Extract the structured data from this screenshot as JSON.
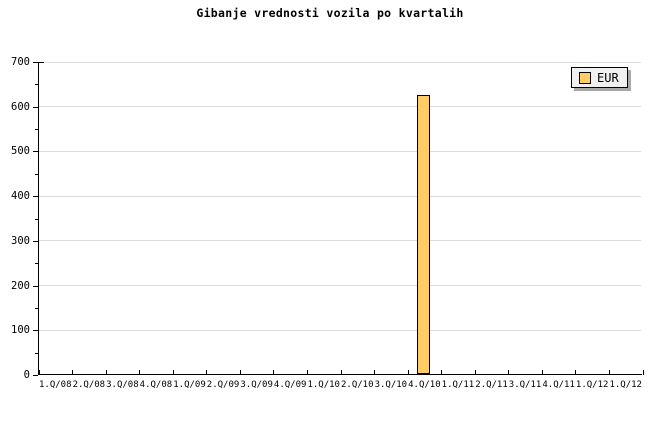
{
  "title": "Gibanje vrednosti vozila po kvartalih",
  "legend": {
    "label": "EUR",
    "swatch_color": "#ffcc66"
  },
  "colors": {
    "background": "#ffffff",
    "text": "#000000",
    "axis": "#000000",
    "gridline": "#dcdcdc",
    "bar_fill": "#ffcc66",
    "bar_border": "#000000",
    "legend_bg": "#f0f0f0",
    "legend_shadow": "#a8a8a8"
  },
  "chart_data": {
    "type": "bar",
    "title": "Gibanje vrednosti vozila po kvartalih",
    "categories": [
      "1.Q/08",
      "2.Q/08",
      "3.Q/08",
      "4.Q/08",
      "1.Q/09",
      "2.Q/09",
      "3.Q/09",
      "4.Q/09",
      "1.Q/10",
      "2.Q/10",
      "3.Q/10",
      "4.Q/10",
      "1.Q/11",
      "2.Q/11",
      "3.Q/11",
      "4.Q/11",
      "1.Q/12",
      "1.Q/12"
    ],
    "series": [
      {
        "name": "EUR",
        "values": [
          0,
          0,
          0,
          0,
          0,
          0,
          0,
          0,
          0,
          0,
          0,
          626,
          0,
          0,
          0,
          0,
          0,
          0
        ]
      }
    ],
    "xlabel": "",
    "ylabel": "",
    "ylim": [
      0,
      700
    ],
    "yticks": [
      0,
      100,
      200,
      300,
      400,
      500,
      600,
      700
    ],
    "ytick_interval": 100,
    "ytick_minor_interval": 50,
    "grid": "horizontal-major",
    "legend_position": "top-right"
  }
}
